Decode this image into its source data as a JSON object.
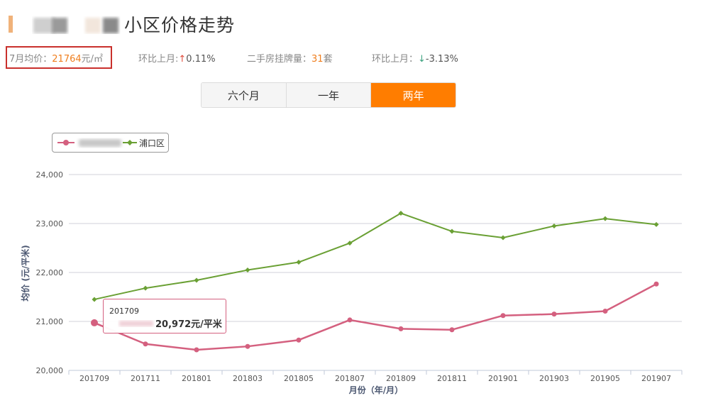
{
  "header": {
    "title": "小区价格走势"
  },
  "stats": {
    "avg_label": "7月均价：",
    "avg_value": "21764",
    "avg_unit": "元/㎡",
    "mom1_label": "环比上月:",
    "mom1_arrow": "↑",
    "mom1_value": "0.11%",
    "listing_label": "二手房挂牌量：",
    "listing_value": "31",
    "listing_unit": "套",
    "mom2_label": "环比上月：",
    "mom2_arrow": "↓",
    "mom2_value": "-3.13%"
  },
  "tabs": [
    {
      "label": "六个月",
      "active": false
    },
    {
      "label": "一年",
      "active": false
    },
    {
      "label": "两年",
      "active": true
    }
  ],
  "tooltip": {
    "month": "201709",
    "value": "20,972元/平米"
  },
  "colors": {
    "community_series": "#d4607f",
    "district_series": "#6aa034",
    "accent": "#ff7d00"
  },
  "chart_data": {
    "type": "line",
    "title": "",
    "xlabel": "月份（年/月）",
    "ylabel": "均价 (元/平米)",
    "x": [
      "201709",
      "201711",
      "201801",
      "201803",
      "201805",
      "201807",
      "201809",
      "201811",
      "201901",
      "201903",
      "201905",
      "201907"
    ],
    "y_ticks": [
      "20,000",
      "21,000",
      "22,000",
      "23,000",
      "24,000"
    ],
    "ylim": [
      20000,
      24000
    ],
    "legend_position": "top-left",
    "grid": true,
    "series": [
      {
        "name": "",
        "color": "#d4607f",
        "values": [
          20972,
          20540,
          20420,
          20490,
          20620,
          21030,
          20850,
          20830,
          21120,
          21150,
          21210,
          21764
        ]
      },
      {
        "name": "浦口区",
        "color": "#6aa034",
        "values": [
          21450,
          21680,
          21840,
          22050,
          22210,
          22600,
          23210,
          22840,
          22710,
          22950,
          23100,
          22980
        ]
      }
    ]
  }
}
